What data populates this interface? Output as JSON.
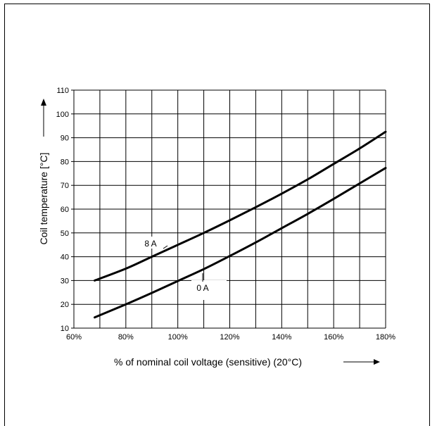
{
  "chart_data": {
    "type": "line",
    "xlabel": "% of nominal coil voltage (sensitive) (20°C)",
    "ylabel": "Coil temperature [°C]",
    "xlim": [
      60,
      180
    ],
    "ylim": [
      10,
      110
    ],
    "x_ticks": [
      "60%",
      "80%",
      "100%",
      "120%",
      "140%",
      "160%",
      "180%"
    ],
    "y_ticks": [
      "10",
      "20",
      "30",
      "40",
      "50",
      "60",
      "70",
      "80",
      "90",
      "100",
      "110"
    ],
    "x_tick_values": [
      60,
      80,
      100,
      120,
      140,
      160,
      180
    ],
    "y_tick_values": [
      10,
      20,
      30,
      40,
      50,
      60,
      70,
      80,
      90,
      100,
      110
    ],
    "grid": true,
    "series": [
      {
        "name": "8 A",
        "x": [
          68,
          80,
          90,
          100,
          110,
          120,
          130,
          140,
          150,
          160,
          170,
          180
        ],
        "y": [
          30,
          35,
          40,
          45,
          50,
          55.3,
          60.8,
          66.5,
          72.5,
          79,
          85.5,
          92.5
        ]
      },
      {
        "name": "0 A",
        "x": [
          68,
          80,
          90,
          100,
          110,
          120,
          130,
          140,
          150,
          160,
          170,
          180
        ],
        "y": [
          14.5,
          20,
          24.8,
          29.8,
          34.8,
          40.3,
          46,
          52,
          58,
          64.3,
          70.8,
          77.3
        ]
      }
    ]
  }
}
